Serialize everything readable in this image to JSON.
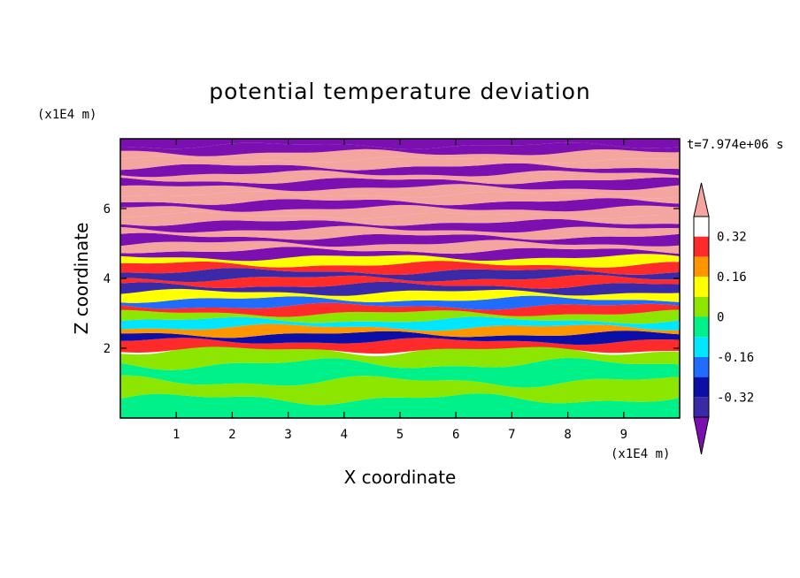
{
  "chart_data": {
    "type": "heatmap",
    "title": "potential temperature deviation",
    "xlabel": "X coordinate",
    "ylabel": "Z coordinate",
    "x_unit": "(x1E4 m)",
    "y_unit": "(x1E4 m)",
    "time_label": "t=7.974e+06 s",
    "xlim": [
      0,
      10
    ],
    "ylim": [
      0,
      8
    ],
    "xticks": [
      1,
      2,
      3,
      4,
      5,
      6,
      7,
      8,
      9
    ],
    "xtick_labels": [
      "1",
      "2",
      "3",
      "4",
      "5",
      "6",
      "7",
      "8",
      "9"
    ],
    "yticks": [
      2,
      4,
      6
    ],
    "ytick_labels": [
      "2",
      "4",
      "6"
    ],
    "colorbar": {
      "levels": [
        -0.4,
        -0.32,
        -0.24,
        -0.16,
        -0.08,
        0,
        0.08,
        0.16,
        0.24,
        0.32,
        0.4
      ],
      "labels": [
        "0.32",
        "0.16",
        "0",
        "-0.16",
        "-0.32"
      ],
      "label_values": [
        0.32,
        0.16,
        0,
        -0.16,
        -0.32
      ],
      "colors_low_to_high": [
        "#7b0fb0",
        "#3a2aa8",
        "#0b0fa8",
        "#1f6cff",
        "#00e6ff",
        "#00f08a",
        "#8ce600",
        "#ffff00",
        "#ff9600",
        "#ff2a2a",
        "#f5a5a0"
      ],
      "extend": "both"
    },
    "band_profile": {
      "z": [
        0.3,
        0.8,
        1.3,
        1.8,
        2.1,
        2.3,
        2.5,
        2.7,
        2.9,
        3.1,
        3.3,
        3.5,
        3.7,
        3.9,
        4.1,
        4.3,
        4.5,
        4.7,
        4.9,
        5.1,
        5.3,
        5.5,
        5.7,
        5.9,
        6.1,
        6.3,
        6.5,
        6.7,
        6.9,
        7.1,
        7.3,
        7.5,
        7.7,
        7.9
      ],
      "value": [
        -0.02,
        0.02,
        -0.03,
        0.03,
        0.28,
        -0.3,
        0.2,
        -0.1,
        0.05,
        0.3,
        -0.2,
        0.12,
        -0.35,
        0.25,
        -0.38,
        0.3,
        0.1,
        -0.42,
        0.45,
        -0.42,
        0.5,
        -0.45,
        0.5,
        0.45,
        -0.45,
        0.5,
        0.5,
        -0.45,
        0.5,
        -0.45,
        0.5,
        0.5,
        -0.45,
        -0.5
      ]
    }
  }
}
